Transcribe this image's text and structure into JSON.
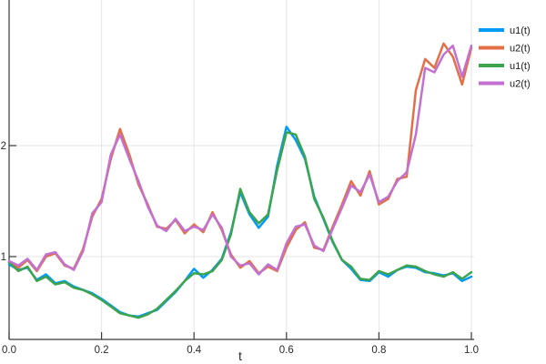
{
  "chart_data": {
    "type": "line",
    "title": "",
    "xlabel": "t",
    "ylabel": "",
    "xlim": [
      0.0,
      1.0
    ],
    "ylim": [
      0.25,
      3.32
    ],
    "xticks": [
      0.0,
      0.2,
      0.4,
      0.6,
      0.8,
      1.0
    ],
    "xtick_labels": [
      "0.0",
      "0.2",
      "0.4",
      "0.6",
      "0.8",
      "1.0"
    ],
    "yticks": [
      1,
      2
    ],
    "ytick_labels": [
      "1",
      "2"
    ],
    "grid": true,
    "legend_position": "outer-top-right",
    "background_color": "#ffffff",
    "grid_color": "#e6e6e6",
    "axis_color": "#36383a",
    "tick_label_color": "#2a2a2a",
    "x": [
      0.0,
      0.02,
      0.04,
      0.06,
      0.08,
      0.1,
      0.12,
      0.14,
      0.16,
      0.18,
      0.2,
      0.22,
      0.24,
      0.26,
      0.28,
      0.3,
      0.32,
      0.34,
      0.36,
      0.38,
      0.4,
      0.42,
      0.44,
      0.46,
      0.48,
      0.5,
      0.52,
      0.54,
      0.56,
      0.58,
      0.6,
      0.62,
      0.64,
      0.66,
      0.68,
      0.7,
      0.72,
      0.74,
      0.76,
      0.78,
      0.8,
      0.82,
      0.84,
      0.86,
      0.88,
      0.9,
      0.92,
      0.94,
      0.96,
      0.98,
      1.0
    ],
    "series": [
      {
        "name": "u1(t)",
        "color": "#009af9",
        "values": [
          0.93,
          0.88,
          0.9,
          0.79,
          0.84,
          0.76,
          0.78,
          0.73,
          0.7,
          0.67,
          0.62,
          0.56,
          0.5,
          0.47,
          0.46,
          0.49,
          0.52,
          0.6,
          0.68,
          0.78,
          0.89,
          0.81,
          0.88,
          0.98,
          1.22,
          1.58,
          1.38,
          1.26,
          1.36,
          1.82,
          2.17,
          2.05,
          1.88,
          1.54,
          1.34,
          1.13,
          0.97,
          0.89,
          0.79,
          0.78,
          0.86,
          0.82,
          0.88,
          0.91,
          0.9,
          0.86,
          0.85,
          0.83,
          0.85,
          0.78,
          0.82
        ]
      },
      {
        "name": "u2(t)",
        "color": "#e26f46",
        "values": [
          0.95,
          0.9,
          0.97,
          0.87,
          1.0,
          1.03,
          0.92,
          0.89,
          1.07,
          1.36,
          1.52,
          1.88,
          2.15,
          1.92,
          1.65,
          1.47,
          1.27,
          1.25,
          1.33,
          1.21,
          1.29,
          1.22,
          1.4,
          1.24,
          1.02,
          0.9,
          0.96,
          0.85,
          0.91,
          0.87,
          1.08,
          1.24,
          1.31,
          1.08,
          1.06,
          1.27,
          1.47,
          1.68,
          1.55,
          1.77,
          1.47,
          1.52,
          1.7,
          1.72,
          2.5,
          2.78,
          2.7,
          2.92,
          2.8,
          2.55,
          2.88
        ]
      },
      {
        "name": "u1(t)",
        "color": "#3da44d",
        "values": [
          0.95,
          0.87,
          0.91,
          0.78,
          0.82,
          0.75,
          0.77,
          0.72,
          0.7,
          0.66,
          0.61,
          0.55,
          0.49,
          0.47,
          0.45,
          0.48,
          0.53,
          0.61,
          0.69,
          0.78,
          0.85,
          0.84,
          0.87,
          0.97,
          1.2,
          1.61,
          1.4,
          1.3,
          1.38,
          1.78,
          2.12,
          2.1,
          1.9,
          1.52,
          1.35,
          1.14,
          0.97,
          0.91,
          0.8,
          0.79,
          0.87,
          0.84,
          0.88,
          0.92,
          0.91,
          0.87,
          0.84,
          0.82,
          0.86,
          0.8,
          0.86
        ]
      },
      {
        "name": "u2(t)",
        "color": "#c271d2",
        "values": [
          0.96,
          0.92,
          0.98,
          0.88,
          1.02,
          1.04,
          0.93,
          0.88,
          1.05,
          1.39,
          1.49,
          1.92,
          2.1,
          1.88,
          1.68,
          1.45,
          1.28,
          1.23,
          1.34,
          1.23,
          1.27,
          1.24,
          1.38,
          1.26,
          1.0,
          0.92,
          0.94,
          0.84,
          0.93,
          0.88,
          1.12,
          1.27,
          1.29,
          1.1,
          1.05,
          1.25,
          1.44,
          1.64,
          1.58,
          1.74,
          1.49,
          1.54,
          1.68,
          1.76,
          2.1,
          2.7,
          2.66,
          2.82,
          2.9,
          2.62,
          2.9
        ]
      }
    ]
  }
}
